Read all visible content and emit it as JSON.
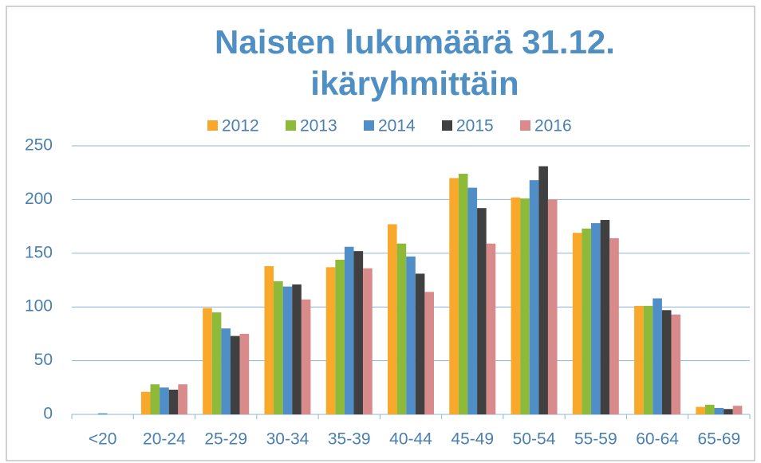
{
  "chart_data": {
    "type": "bar",
    "title": [
      "Naisten lukumäärä 31.12.",
      "ikäryhmittäin"
    ],
    "categories": [
      "<20",
      "20-24",
      "25-29",
      "30-34",
      "35-39",
      "40-44",
      "45-49",
      "50-54",
      "55-59",
      "60-64",
      "65-69"
    ],
    "series": [
      {
        "name": "2012",
        "color": "#f8a82a",
        "values": [
          0,
          21,
          99,
          138,
          137,
          177,
          220,
          202,
          169,
          101,
          7
        ]
      },
      {
        "name": "2013",
        "color": "#8dba38",
        "values": [
          0,
          28,
          95,
          124,
          144,
          159,
          224,
          201,
          173,
          101,
          9
        ]
      },
      {
        "name": "2014",
        "color": "#4f8ec6",
        "values": [
          1,
          25,
          80,
          119,
          156,
          147,
          211,
          218,
          178,
          108,
          6
        ]
      },
      {
        "name": "2015",
        "color": "#404040",
        "values": [
          0,
          23,
          73,
          121,
          152,
          131,
          192,
          231,
          181,
          97,
          5
        ]
      },
      {
        "name": "2016",
        "color": "#d98b8c",
        "values": [
          0,
          28,
          75,
          107,
          136,
          114,
          159,
          200,
          164,
          93,
          8
        ]
      }
    ],
    "ylim": [
      0,
      250
    ],
    "yticks": [
      0,
      50,
      100,
      150,
      200,
      250
    ],
    "grid": true,
    "legend": "top"
  }
}
